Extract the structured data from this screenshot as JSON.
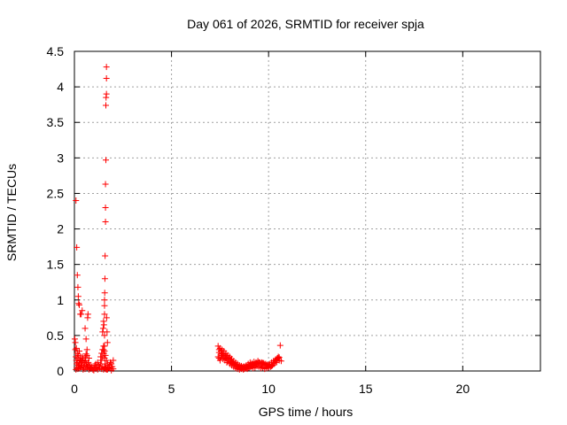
{
  "chart_data": {
    "type": "scatter",
    "title": "Day 061 of 2026, SRMTID for receiver spja",
    "xlabel": "GPS time / hours",
    "ylabel": "SRMTID / TECUs",
    "xlim": [
      0,
      24
    ],
    "ylim": [
      0,
      4.5
    ],
    "xticks": [
      "0",
      "5",
      "10",
      "15",
      "20"
    ],
    "yticks": [
      "0",
      "0.5",
      "1",
      "1.5",
      "2",
      "2.5",
      "3",
      "3.5",
      "4",
      "4.5"
    ],
    "grid": true,
    "marker": "+",
    "color": "#ff0000",
    "series": [
      {
        "x": [
          0.02,
          0.05,
          0.08,
          0.1,
          0.12,
          0.15,
          0.18,
          0.2,
          0.22,
          0.25,
          0.28,
          0.3,
          0.32,
          0.35,
          0.38,
          0.4,
          0.42,
          0.45,
          0.48,
          0.5,
          0.52,
          0.55,
          0.58,
          0.6,
          0.62,
          0.65,
          0.68,
          0.7,
          0.72,
          0.75,
          0.78,
          0.8,
          0.85,
          0.9,
          0.95,
          1.0,
          1.05,
          1.1,
          1.15,
          1.2,
          1.25,
          1.3,
          1.35,
          1.4,
          1.45,
          1.5,
          1.52,
          1.55,
          1.58,
          1.6,
          1.62,
          1.65,
          1.7,
          1.75,
          1.8,
          1.85,
          1.9,
          1.95,
          2.0,
          0.08,
          0.12,
          0.18,
          0.22,
          0.28,
          0.35,
          0.45,
          0.55,
          0.65,
          0.75,
          0.85,
          1.0,
          1.1,
          1.2,
          1.3,
          1.4,
          1.45,
          1.5,
          1.55,
          1.6,
          1.7,
          1.8,
          1.9,
          2.0,
          0.05,
          0.1,
          0.15,
          0.2,
          0.25,
          0.3,
          0.35,
          0.4,
          0.5,
          0.6,
          0.7,
          1.35,
          1.4,
          1.45,
          1.5,
          1.55,
          1.6,
          1.65,
          1.7,
          0.08,
          0.12,
          0.15,
          0.18,
          0.2,
          0.22,
          0.25,
          0.3,
          0.35,
          0.4,
          0.55,
          0.6,
          0.65,
          0.68,
          0.7,
          1.45,
          1.48,
          1.5,
          1.52,
          1.55,
          1.55,
          1.55,
          1.55,
          1.55,
          1.56,
          1.57,
          1.58,
          1.6,
          1.6,
          1.6,
          1.62,
          1.62,
          1.63,
          1.65,
          1.65,
          1.65,
          1.66,
          1.68,
          1.7
        ],
        "y": [
          0.45,
          0.3,
          0.2,
          0.15,
          0.1,
          0.12,
          0.18,
          0.08,
          0.05,
          0.1,
          0.15,
          0.2,
          0.06,
          0.12,
          0.08,
          0.1,
          0.14,
          0.18,
          0.05,
          0.1,
          0.12,
          0.2,
          0.15,
          0.08,
          0.1,
          0.22,
          0.06,
          0.1,
          0.12,
          0.18,
          0.08,
          0.05,
          0.03,
          0.06,
          0.02,
          0.04,
          0.08,
          0.1,
          0.05,
          0.12,
          0.08,
          0.06,
          0.1,
          0.15,
          0.2,
          0.3,
          0.25,
          0.18,
          0.1,
          0.06,
          0.04,
          0.02,
          0.03,
          0.05,
          0.08,
          0.12,
          0.1,
          0.06,
          0.15,
          0.02,
          0.05,
          0.03,
          0.08,
          0.04,
          0.06,
          0.02,
          0.03,
          0.05,
          0.02,
          0.04,
          0.01,
          0.03,
          0.02,
          0.04,
          0.03,
          0.06,
          0.02,
          0.05,
          0.03,
          0.02,
          0.04,
          0.01,
          0.03,
          0.4,
          0.32,
          0.25,
          0.22,
          0.28,
          0.16,
          0.14,
          0.2,
          0.12,
          0.24,
          0.1,
          0.2,
          0.25,
          0.3,
          0.35,
          0.28,
          0.22,
          0.15,
          0.1,
          2.4,
          1.74,
          1.35,
          1.18,
          1.05,
          0.95,
          0.93,
          0.8,
          0.8,
          0.85,
          0.6,
          0.45,
          0.3,
          0.75,
          0.8,
          0.55,
          0.6,
          0.7,
          0.65,
          0.8,
          1.0,
          0.5,
          0.35,
          0.92,
          1.1,
          1.3,
          1.62,
          2.1,
          2.3,
          2.63,
          2.97,
          3.74,
          3.85,
          3.9,
          4.12,
          4.28,
          0.75,
          0.55,
          0.4
        ],
        "x2": [
          7.4,
          7.45,
          7.5,
          7.55,
          7.6,
          7.65,
          7.7,
          7.75,
          7.8,
          7.85,
          7.9,
          7.95,
          8.0,
          8.05,
          8.1,
          8.15,
          8.2,
          8.25,
          8.3,
          8.35,
          8.4,
          8.45,
          8.5,
          8.55,
          8.6,
          8.65,
          8.7,
          8.75,
          8.8,
          8.85,
          8.9,
          8.95,
          9.0,
          9.05,
          9.1,
          9.15,
          9.2,
          9.25,
          9.3,
          9.35,
          9.4,
          9.45,
          9.5,
          9.55,
          9.6,
          9.65,
          9.7,
          9.75,
          9.8,
          9.85,
          9.9,
          9.95,
          10.0,
          10.05,
          10.1,
          10.15,
          10.2,
          10.25,
          10.3,
          10.35,
          10.4,
          10.45,
          10.5,
          10.55,
          10.6,
          7.4,
          7.45,
          7.5,
          7.55,
          7.6,
          7.65,
          7.7,
          7.75,
          7.8,
          7.85,
          7.9,
          8.0,
          8.1,
          8.2,
          8.3,
          8.4,
          8.5,
          8.6,
          8.7,
          8.8,
          8.9,
          9.0,
          9.1,
          9.2,
          9.3,
          9.4,
          9.5,
          9.6,
          9.7,
          9.8,
          9.9,
          10.0,
          10.1,
          10.2,
          10.3,
          10.4,
          10.5,
          7.45,
          7.55,
          7.65,
          7.75,
          7.85,
          7.95,
          8.05,
          8.15,
          8.25,
          8.35,
          8.45,
          8.55,
          8.65,
          8.75,
          8.85,
          8.95,
          9.05,
          9.15,
          9.25,
          9.35,
          9.45,
          9.55,
          9.65,
          9.75,
          9.85,
          9.95,
          10.05,
          10.15,
          10.25,
          10.35,
          10.45,
          10.55,
          10.65
        ],
        "y2": [
          0.35,
          0.3,
          0.32,
          0.28,
          0.3,
          0.25,
          0.28,
          0.22,
          0.25,
          0.2,
          0.22,
          0.18,
          0.2,
          0.15,
          0.17,
          0.12,
          0.14,
          0.1,
          0.12,
          0.08,
          0.1,
          0.06,
          0.08,
          0.05,
          0.07,
          0.04,
          0.06,
          0.03,
          0.05,
          0.04,
          0.06,
          0.05,
          0.07,
          0.06,
          0.08,
          0.07,
          0.09,
          0.08,
          0.1,
          0.09,
          0.11,
          0.1,
          0.12,
          0.11,
          0.1,
          0.12,
          0.11,
          0.1,
          0.09,
          0.1,
          0.08,
          0.09,
          0.07,
          0.08,
          0.06,
          0.07,
          0.08,
          0.1,
          0.12,
          0.14,
          0.16,
          0.18,
          0.2,
          0.15,
          0.36,
          0.2,
          0.18,
          0.15,
          0.2,
          0.22,
          0.17,
          0.2,
          0.15,
          0.18,
          0.12,
          0.15,
          0.1,
          0.08,
          0.06,
          0.04,
          0.03,
          0.02,
          0.03,
          0.02,
          0.04,
          0.03,
          0.05,
          0.06,
          0.04,
          0.05,
          0.07,
          0.06,
          0.04,
          0.05,
          0.03,
          0.04,
          0.05,
          0.06,
          0.08,
          0.1,
          0.12,
          0.18,
          0.26,
          0.24,
          0.22,
          0.2,
          0.17,
          0.15,
          0.13,
          0.11,
          0.09,
          0.07,
          0.06,
          0.04,
          0.05,
          0.06,
          0.08,
          0.1,
          0.12,
          0.11,
          0.13,
          0.12,
          0.14,
          0.12,
          0.1,
          0.11,
          0.09,
          0.08,
          0.1,
          0.12,
          0.14,
          0.15,
          0.17,
          0.19,
          0.14
        ]
      }
    ]
  }
}
